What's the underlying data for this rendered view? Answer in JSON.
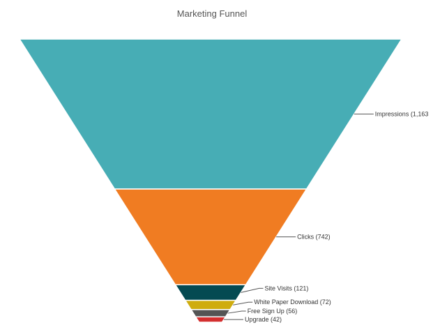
{
  "chart_data": {
    "type": "funnel",
    "title": "Marketing Funnel",
    "stages": [
      {
        "label": "Impressions (1,163",
        "name": "Impressions",
        "value": 1163,
        "color": "#47adb5"
      },
      {
        "label": "Clicks (742)",
        "name": "Clicks",
        "value": 742,
        "color": "#f07c22"
      },
      {
        "label": "Site Visits (121)",
        "name": "Site Visits",
        "value": 121,
        "color": "#044a52"
      },
      {
        "label": "White Paper Download (72)",
        "name": "White Paper Download",
        "value": 72,
        "color": "#cfac0e"
      },
      {
        "label": "Free Sign Up (56)",
        "name": "Free Sign Up",
        "value": 56,
        "color": "#545454"
      },
      {
        "label": "Upgrade (42)",
        "name": "Upgrade",
        "value": 42,
        "color": "#d32f2f"
      }
    ]
  }
}
